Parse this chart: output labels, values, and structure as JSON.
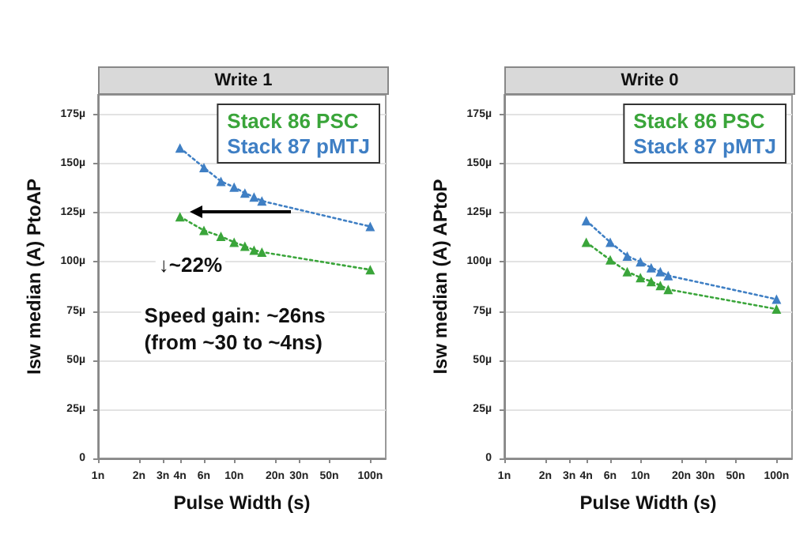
{
  "chart_data": [
    {
      "type": "line",
      "title": "Write 1",
      "xlabel": "Pulse Width (s)",
      "ylabel": "Isw median (A) PtoAP",
      "log": "x",
      "grid": "y",
      "legend": "top right",
      "marker": "triangle",
      "line_style": "dotted",
      "xlim": [
        1,
        130
      ],
      "xticks": [
        {
          "value": 1,
          "label": "1n"
        },
        {
          "value": 2,
          "label": "2n"
        },
        {
          "value": 3,
          "label": "3n"
        },
        {
          "value": 4,
          "label": "4n"
        },
        {
          "value": 6,
          "label": "6n"
        },
        {
          "value": 10,
          "label": "10n"
        },
        {
          "value": 20,
          "label": "20n"
        },
        {
          "value": 30,
          "label": "30n"
        },
        {
          "value": 50,
          "label": "50n"
        },
        {
          "value": 100,
          "label": "100n"
        }
      ],
      "ylim": [
        0,
        185
      ],
      "yticks": [
        0,
        {
          "value": 25,
          "label": "25µ"
        },
        {
          "value": 50,
          "label": "50µ"
        },
        {
          "value": 75,
          "label": "75µ"
        },
        {
          "value": 100,
          "label": "100µ"
        },
        {
          "value": 125,
          "label": "125µ"
        },
        {
          "value": 150,
          "label": "150µ"
        },
        {
          "value": 175,
          "label": "175µ"
        }
      ],
      "x": [
        4,
        6,
        8,
        10,
        12,
        14,
        16,
        100
      ],
      "series": [
        {
          "name": "Stack 86 PSC",
          "color": "#3aa53a",
          "values": [
            123,
            116,
            113,
            110,
            108,
            106,
            105,
            96
          ]
        },
        {
          "name": "Stack 87 pMTJ",
          "color": "#3f7fc4",
          "values": [
            158,
            148,
            141,
            138,
            135,
            133,
            131,
            118
          ]
        }
      ],
      "annotations": [
        "↓~22%",
        "Speed gain: ~26ns\n(from ~30 to ~4ns)"
      ]
    },
    {
      "type": "line",
      "title": "Write 0",
      "xlabel": "Pulse Width (s)",
      "ylabel": "Isw median (A) APtoP",
      "log": "x",
      "grid": "y",
      "legend": "top right",
      "marker": "triangle",
      "line_style": "dotted",
      "xlim": [
        1,
        130
      ],
      "xticks": [
        {
          "value": 1,
          "label": "1n"
        },
        {
          "value": 2,
          "label": "2n"
        },
        {
          "value": 3,
          "label": "3n"
        },
        {
          "value": 4,
          "label": "4n"
        },
        {
          "value": 6,
          "label": "6n"
        },
        {
          "value": 10,
          "label": "10n"
        },
        {
          "value": 20,
          "label": "20n"
        },
        {
          "value": 30,
          "label": "30n"
        },
        {
          "value": 50,
          "label": "50n"
        },
        {
          "value": 100,
          "label": "100n"
        }
      ],
      "ylim": [
        0,
        185
      ],
      "yticks": [
        0,
        {
          "value": 25,
          "label": "25µ"
        },
        {
          "value": 50,
          "label": "50µ"
        },
        {
          "value": 75,
          "label": "75µ"
        },
        {
          "value": 100,
          "label": "100µ"
        },
        {
          "value": 125,
          "label": "125µ"
        },
        {
          "value": 150,
          "label": "150µ"
        },
        {
          "value": 175,
          "label": "175µ"
        }
      ],
      "x": [
        4,
        6,
        8,
        10,
        12,
        14,
        16,
        100
      ],
      "series": [
        {
          "name": "Stack 86 PSC",
          "color": "#3aa53a",
          "values": [
            110,
            101,
            95,
            92,
            90,
            88,
            86,
            76
          ]
        },
        {
          "name": "Stack 87 pMTJ",
          "color": "#3f7fc4",
          "values": [
            121,
            110,
            103,
            100,
            97,
            95,
            93,
            81
          ]
        }
      ]
    }
  ]
}
